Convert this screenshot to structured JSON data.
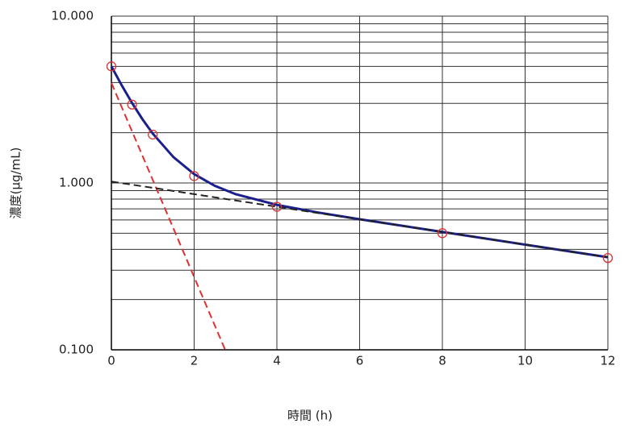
{
  "chart_data": {
    "type": "line",
    "x_label": "時間 (h)",
    "y_label": "濃度(μg/mL)",
    "y_log": true,
    "grid": true,
    "xlim": [
      0,
      12
    ],
    "xticks": [
      0,
      2,
      4,
      6,
      8,
      10,
      12
    ],
    "ylim": [
      0.1,
      10
    ],
    "yticks": [
      {
        "value": 0.1,
        "label": "0.100"
      },
      {
        "value": 1,
        "label": "1.000"
      },
      {
        "value": 10,
        "label": "10.000"
      }
    ],
    "minor_yticks": [
      0.2,
      0.3,
      0.4,
      0.5,
      0.6,
      0.7,
      0.8,
      0.9,
      2,
      3,
      4,
      5,
      6,
      7,
      8,
      9
    ],
    "series": [
      {
        "mode": "line",
        "dash": false,
        "color": "#1a1f8c",
        "x": [
          0,
          0.25,
          0.5,
          0.75,
          1,
          1.5,
          2,
          2.5,
          3,
          4,
          5,
          6,
          8,
          10,
          12
        ],
        "values": [
          5.0,
          3.845,
          3.013,
          2.412,
          1.977,
          1.428,
          1.13,
          0.961,
          0.857,
          0.739,
          0.665,
          0.606,
          0.509,
          0.427,
          0.359
        ]
      },
      {
        "mode": "line",
        "dash": true,
        "color": "#e03030",
        "x": [
          0,
          2.75
        ],
        "values": [
          3.98,
          0.1
        ]
      },
      {
        "mode": "line",
        "dash": true,
        "color": "#222222",
        "x": [
          0,
          12
        ],
        "values": [
          1.02,
          0.359
        ]
      },
      {
        "mode": "markers",
        "color": "#e03030",
        "x": [
          0,
          0.5,
          1,
          2,
          4,
          8,
          12
        ],
        "values": [
          5.0,
          2.95,
          1.95,
          1.1,
          0.72,
          0.5,
          0.355
        ]
      }
    ]
  }
}
